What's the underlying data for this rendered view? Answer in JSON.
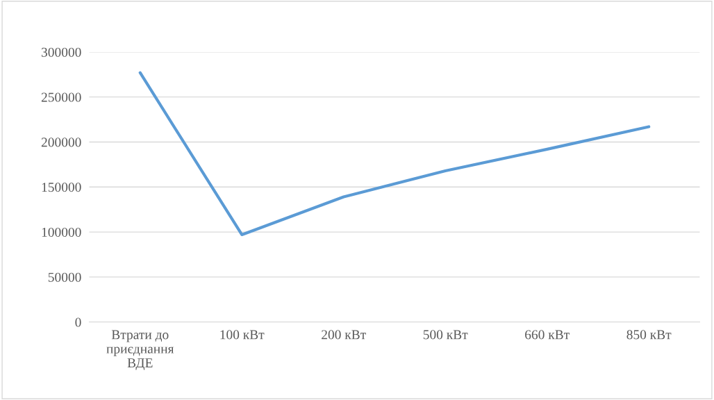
{
  "chart_data": {
    "type": "line",
    "categories": [
      "Втрати до\nприєднання\nВДЕ",
      "100 кВт",
      "200 кВт",
      "500 кВт",
      "660 кВт",
      "850 кВт"
    ],
    "series": [
      {
        "color": "#5b9bd5",
        "values": [
          277000,
          97000,
          139000,
          168000,
          192000,
          217000
        ]
      }
    ],
    "ylim": [
      0,
      300000
    ],
    "yticks": [
      0,
      50000,
      100000,
      150000,
      200000,
      250000,
      300000
    ],
    "grid": "y",
    "legend": false,
    "marker": "none",
    "line_style": "solid"
  }
}
